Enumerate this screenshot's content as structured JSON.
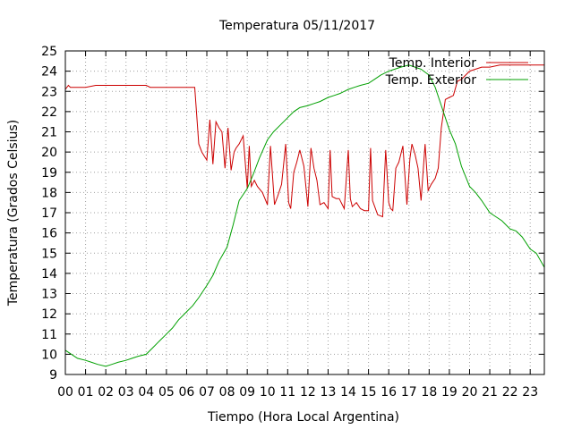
{
  "chart_data": {
    "type": "line",
    "title": "Temperatura 05/11/2017",
    "xlabel": "Tiempo (Hora Local Argentina)",
    "ylabel": "Temperatura (Grados Celsius)",
    "xlim": [
      0,
      23.7
    ],
    "ylim": [
      9,
      25
    ],
    "grid": true,
    "legend_position": "top-right",
    "x_ticks": [
      "00",
      "01",
      "02",
      "03",
      "04",
      "05",
      "06",
      "07",
      "08",
      "09",
      "10",
      "11",
      "12",
      "13",
      "14",
      "15",
      "16",
      "17",
      "18",
      "19",
      "20",
      "21",
      "22",
      "23"
    ],
    "y_ticks": [
      9,
      10,
      11,
      12,
      13,
      14,
      15,
      16,
      17,
      18,
      19,
      20,
      21,
      22,
      23,
      24,
      25
    ],
    "series": [
      {
        "name": "Temp. Interior",
        "color": "#cc0000",
        "x": [
          0,
          0.15,
          0.25,
          1,
          1.5,
          2,
          2.5,
          3,
          3.5,
          4,
          4.2,
          5,
          5.5,
          6,
          6.4,
          6.6,
          6.75,
          7,
          7.15,
          7.3,
          7.45,
          7.6,
          7.75,
          7.9,
          8.05,
          8.2,
          8.35,
          8.45,
          8.6,
          8.8,
          9,
          9.1,
          9.2,
          9.35,
          9.5,
          9.75,
          10,
          10.15,
          10.35,
          10.5,
          10.7,
          10.9,
          11.05,
          11.15,
          11.3,
          11.45,
          11.6,
          11.8,
          12,
          12.15,
          12.3,
          12.45,
          12.6,
          12.8,
          13,
          13.1,
          13.2,
          13.4,
          13.55,
          13.8,
          14,
          14.1,
          14.2,
          14.4,
          14.6,
          14.8,
          15,
          15.1,
          15.2,
          15.45,
          15.7,
          15.85,
          16,
          16.1,
          16.2,
          16.35,
          16.5,
          16.7,
          16.9,
          17.05,
          17.15,
          17.3,
          17.45,
          17.6,
          17.8,
          17.95,
          18.1,
          18.3,
          18.45,
          18.6,
          18.8,
          19,
          19.2,
          19.4,
          19.6,
          19.8,
          20,
          20.3,
          20.6,
          21,
          21.5,
          22,
          22.5,
          23,
          23.5,
          23.7
        ],
        "values": [
          23.1,
          23.3,
          23.2,
          23.2,
          23.3,
          23.3,
          23.3,
          23.3,
          23.3,
          23.3,
          23.2,
          23.2,
          23.2,
          23.2,
          23.2,
          20.4,
          20.0,
          19.6,
          21.6,
          19.4,
          21.5,
          21.2,
          21.0,
          19.2,
          21.2,
          19.1,
          20.0,
          20.2,
          20.4,
          20.8,
          18.2,
          20.3,
          18.3,
          18.6,
          18.3,
          18.0,
          17.4,
          20.3,
          17.4,
          17.8,
          18.4,
          20.4,
          17.5,
          17.2,
          19.0,
          19.5,
          20.1,
          19.3,
          17.3,
          20.2,
          19.2,
          18.6,
          17.4,
          17.5,
          17.2,
          20.1,
          17.8,
          17.7,
          17.7,
          17.2,
          20.1,
          17.7,
          17.3,
          17.5,
          17.2,
          17.1,
          17.1,
          20.2,
          17.6,
          16.9,
          16.8,
          20.1,
          17.5,
          17.2,
          17.1,
          19.2,
          19.5,
          20.3,
          17.4,
          19.7,
          20.4,
          19.9,
          19.2,
          17.6,
          20.4,
          18.1,
          18.4,
          18.7,
          19.2,
          21.2,
          22.6,
          22.7,
          22.8,
          23.5,
          23.6,
          23.8,
          24.0,
          24.1,
          24.2,
          24.2,
          24.3,
          24.3,
          24.3,
          24.3,
          24.3,
          24.3
        ]
      },
      {
        "name": "Temp. Exterior",
        "color": "#00a000",
        "x": [
          0,
          0.3,
          0.6,
          1,
          1.3,
          1.6,
          2,
          2.3,
          2.6,
          3,
          3.3,
          3.6,
          4,
          4.3,
          4.6,
          5,
          5.3,
          5.6,
          6,
          6.3,
          6.6,
          7,
          7.3,
          7.6,
          8,
          8.3,
          8.6,
          9,
          9.3,
          9.6,
          10,
          10.3,
          10.6,
          11,
          11.3,
          11.6,
          12,
          12.3,
          12.6,
          13,
          13.3,
          13.6,
          14,
          14.3,
          14.6,
          15,
          15.3,
          15.6,
          16,
          16.3,
          16.6,
          17,
          17.3,
          17.6,
          18,
          18.3,
          18.6,
          19,
          19.3,
          19.6,
          20,
          20.3,
          20.6,
          21,
          21.3,
          21.6,
          22,
          22.3,
          22.6,
          23,
          23.3,
          23.7
        ],
        "values": [
          10.2,
          10.0,
          9.8,
          9.7,
          9.6,
          9.5,
          9.4,
          9.5,
          9.6,
          9.7,
          9.8,
          9.9,
          10.0,
          10.3,
          10.6,
          11.0,
          11.3,
          11.7,
          12.1,
          12.4,
          12.8,
          13.4,
          13.9,
          14.6,
          15.3,
          16.4,
          17.6,
          18.2,
          18.9,
          19.7,
          20.6,
          21.0,
          21.3,
          21.7,
          22.0,
          22.2,
          22.3,
          22.4,
          22.5,
          22.7,
          22.8,
          22.9,
          23.1,
          23.2,
          23.3,
          23.4,
          23.6,
          23.8,
          24.0,
          24.1,
          24.2,
          24.3,
          24.2,
          24.1,
          23.8,
          23.2,
          22.3,
          21.1,
          20.4,
          19.3,
          18.3,
          18.0,
          17.6,
          17.0,
          16.8,
          16.6,
          16.2,
          16.1,
          15.8,
          15.2,
          15.0,
          14.3
        ]
      }
    ]
  }
}
